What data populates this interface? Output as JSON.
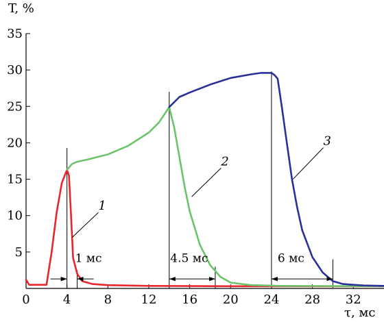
{
  "chart_data": {
    "type": "line",
    "title": "",
    "xlabel": "τ, мс",
    "ylabel": "T, %",
    "xlim": [
      0,
      35
    ],
    "ylim": [
      0,
      35
    ],
    "x_ticks": [
      0,
      4,
      8,
      12,
      16,
      20,
      24,
      28,
      32
    ],
    "y_ticks": [
      5,
      10,
      15,
      20,
      25,
      30,
      35
    ],
    "grid": false,
    "series": [
      {
        "name": "1",
        "color": "#e8262b",
        "points": [
          [
            0,
            1.2
          ],
          [
            0.3,
            0.5
          ],
          [
            2,
            0.5
          ],
          [
            2.5,
            5
          ],
          [
            3,
            10.5
          ],
          [
            3.5,
            14.5
          ],
          [
            4,
            16.3
          ],
          [
            4.2,
            15.5
          ],
          [
            4.4,
            10
          ],
          [
            4.6,
            4.2
          ],
          [
            5,
            2
          ],
          [
            5.5,
            1
          ],
          [
            6.5,
            0.6
          ],
          [
            8,
            0.45
          ],
          [
            12,
            0.35
          ],
          [
            20,
            0.3
          ],
          [
            28,
            0.3
          ],
          [
            35,
            0.3
          ]
        ]
      },
      {
        "name": "2",
        "color": "#6cc46a",
        "points": [
          [
            4,
            16.3
          ],
          [
            4.5,
            17.1
          ],
          [
            5,
            17.4
          ],
          [
            6,
            17.7
          ],
          [
            8,
            18.4
          ],
          [
            10,
            19.6
          ],
          [
            12,
            21.4
          ],
          [
            13,
            22.8
          ],
          [
            14,
            24.9
          ],
          [
            14.5,
            22
          ],
          [
            15,
            18
          ],
          [
            15.5,
            14
          ],
          [
            16,
            10.6
          ],
          [
            17,
            6
          ],
          [
            18,
            3.2
          ],
          [
            19,
            1.6
          ],
          [
            20,
            0.8
          ],
          [
            22,
            0.45
          ],
          [
            25,
            0.35
          ],
          [
            35,
            0.3
          ]
        ]
      },
      {
        "name": "3",
        "color": "#2a2f9a",
        "points": [
          [
            14,
            24.9
          ],
          [
            15,
            26.3
          ],
          [
            16,
            26.9
          ],
          [
            18,
            28
          ],
          [
            20,
            28.9
          ],
          [
            22,
            29.4
          ],
          [
            23,
            29.6
          ],
          [
            24,
            29.6
          ],
          [
            24.3,
            29.3
          ],
          [
            24.6,
            28.8
          ],
          [
            25,
            25
          ],
          [
            25.5,
            20
          ],
          [
            26,
            15
          ],
          [
            26.5,
            11.2
          ],
          [
            27,
            8
          ],
          [
            28,
            4.3
          ],
          [
            29,
            2.2
          ],
          [
            30,
            1
          ],
          [
            31,
            0.6
          ],
          [
            33,
            0.4
          ],
          [
            35,
            0.35
          ]
        ]
      }
    ],
    "verticals": [
      {
        "x": 4,
        "y": [
          0,
          19.3
        ]
      },
      {
        "x": 5,
        "y": [
          0,
          2.5
        ]
      },
      {
        "x": 14,
        "y": [
          0,
          27
        ]
      },
      {
        "x": 18.5,
        "y": [
          0,
          3
        ]
      },
      {
        "x": 24,
        "y": [
          0,
          29.8
        ]
      },
      {
        "x": 30,
        "y": [
          0,
          4
        ]
      }
    ],
    "annotations": [
      {
        "label": "1 мс",
        "x_from": 4,
        "x_to": 5,
        "y": 1.3,
        "text_x": 4.8,
        "text_y": 3.6
      },
      {
        "label": "4.5 мс",
        "x_from": 14,
        "x_to": 18.5,
        "y": 1.3,
        "text_x": 14.1,
        "text_y": 3.6
      },
      {
        "label": "6 мс",
        "x_from": 24,
        "x_to": 30,
        "y": 1.3,
        "text_x": 24.6,
        "text_y": 3.6
      }
    ],
    "curve_labels": [
      {
        "text": "1",
        "x": 7.2,
        "y": 10.8,
        "line_to": [
          4.5,
          7.0
        ]
      },
      {
        "text": "2",
        "x": 19.2,
        "y": 16.9,
        "line_to": [
          16.2,
          12.6
        ]
      },
      {
        "text": "3",
        "x": 29.2,
        "y": 19.7,
        "line_to": [
          26.1,
          15.0
        ]
      }
    ]
  }
}
